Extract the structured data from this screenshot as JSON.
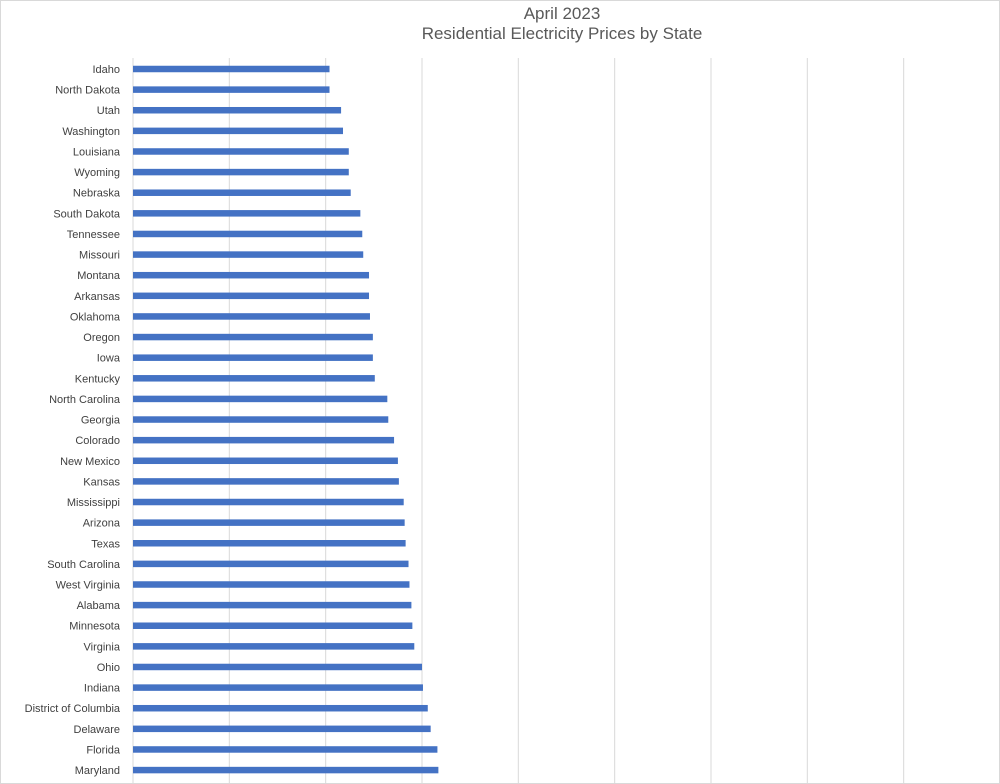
{
  "chart_data": {
    "type": "bar",
    "orientation": "horizontal",
    "title_line1": "April 2023",
    "title_line2": "Residential Electricity Prices by State",
    "xlabel": "",
    "ylabel": "",
    "xlim": [
      0,
      45
    ],
    "x_gridline_step": 5,
    "x_tick_labels_visible": false,
    "grid": true,
    "legend": "none",
    "bar_color": "#4472C4",
    "grid_color": "#d9d9d9",
    "categories": [
      "Idaho",
      "North Dakota",
      "Utah",
      "Washington",
      "Louisiana",
      "Wyoming",
      "Nebraska",
      "South Dakota",
      "Tennessee",
      "Missouri",
      "Montana",
      "Arkansas",
      "Oklahoma",
      "Oregon",
      "Iowa",
      "Kentucky",
      "North Carolina",
      "Georgia",
      "Colorado",
      "New Mexico",
      "Kansas",
      "Mississippi",
      "Arizona",
      "Texas",
      "South Carolina",
      "West Virginia",
      "Alabama",
      "Minnesota",
      "Virginia",
      "Ohio",
      "Indiana",
      "District of Columbia",
      "Delaware",
      "Florida",
      "Maryland"
    ],
    "values": [
      10.2,
      10.2,
      10.8,
      10.9,
      11.2,
      11.2,
      11.3,
      11.8,
      11.9,
      11.95,
      12.25,
      12.25,
      12.3,
      12.45,
      12.45,
      12.55,
      13.2,
      13.25,
      13.55,
      13.75,
      13.8,
      14.05,
      14.1,
      14.15,
      14.3,
      14.35,
      14.45,
      14.5,
      14.6,
      15.0,
      15.05,
      15.3,
      15.45,
      15.8,
      15.85
    ]
  }
}
